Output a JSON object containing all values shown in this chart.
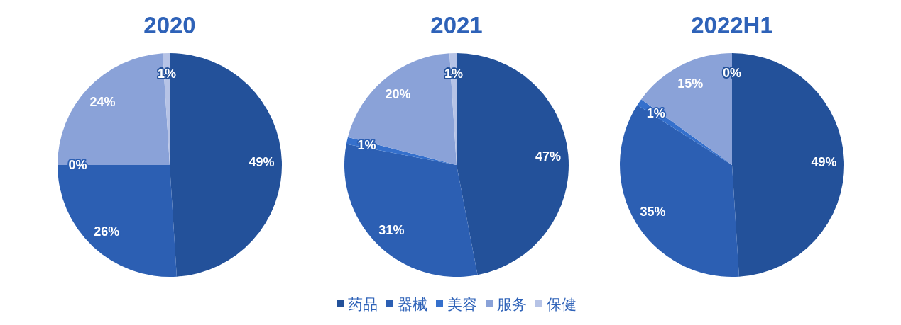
{
  "chart_data": [
    {
      "type": "pie",
      "title": "2020",
      "values": [
        49,
        26,
        0,
        24,
        1
      ],
      "value_labels": [
        "49%",
        "26%",
        "0%",
        "24%",
        "1%"
      ],
      "colors": [
        "#23519a",
        "#2c5fb3",
        "#3570cc",
        "#8aa2d8",
        "#b6c3e6"
      ]
    },
    {
      "type": "pie",
      "title": "2021",
      "categories": [
        "药品",
        "器械",
        "美容",
        "服务",
        "保健"
      ],
      "values": [
        47,
        31,
        1,
        20,
        1
      ],
      "value_labels": [
        "47%",
        "31%",
        "1%",
        "20%",
        "1%"
      ],
      "colors": [
        "#23519a",
        "#2c5fb3",
        "#3570cc",
        "#8aa2d8",
        "#b6c3e6"
      ],
      "legend": "bottom"
    },
    {
      "type": "pie",
      "title": "2022H1",
      "values": [
        49,
        35,
        1,
        15,
        0
      ],
      "value_labels": [
        "49%",
        "35%",
        "1%",
        "15%",
        "0%"
      ],
      "colors": [
        "#23519a",
        "#2c5fb3",
        "#3570cc",
        "#8aa2d8",
        "#b6c3e6"
      ]
    }
  ]
}
